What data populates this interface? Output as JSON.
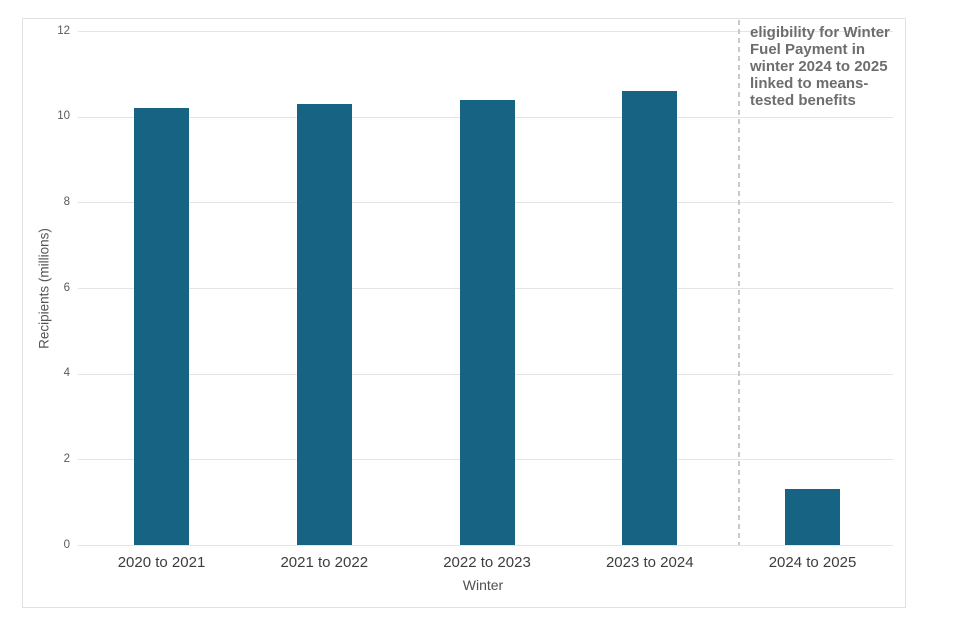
{
  "chart_data": {
    "type": "bar",
    "title": "",
    "categories": [
      "2020 to 2021",
      "2021 to 2022",
      "2022 to 2023",
      "2023 to 2024",
      "2024 to 2025"
    ],
    "values": [
      10.2,
      10.3,
      10.4,
      10.6,
      1.3
    ],
    "xlabel": "Winter",
    "ylabel": "Recipients (millions)",
    "ylim": [
      0,
      12
    ],
    "yticks": [
      0,
      2,
      4,
      6,
      8,
      10,
      12
    ],
    "grid": true,
    "legend": "none",
    "bar_color": "#176384",
    "gridline_color": "#e4e4e4",
    "annotation": {
      "text": "eligibility for Winter Fuel Payment in winter 2024 to 2025 linked to means-tested benefits",
      "lines": [
        "eligibility for Winter",
        "Fuel Payment in",
        "winter 2024 to 2025",
        "linked to means-",
        "tested benefits"
      ],
      "color": "#6d6d6d",
      "divider_color": "#c9c9c9",
      "divider_position": "before 2024 to 2025 category"
    }
  }
}
